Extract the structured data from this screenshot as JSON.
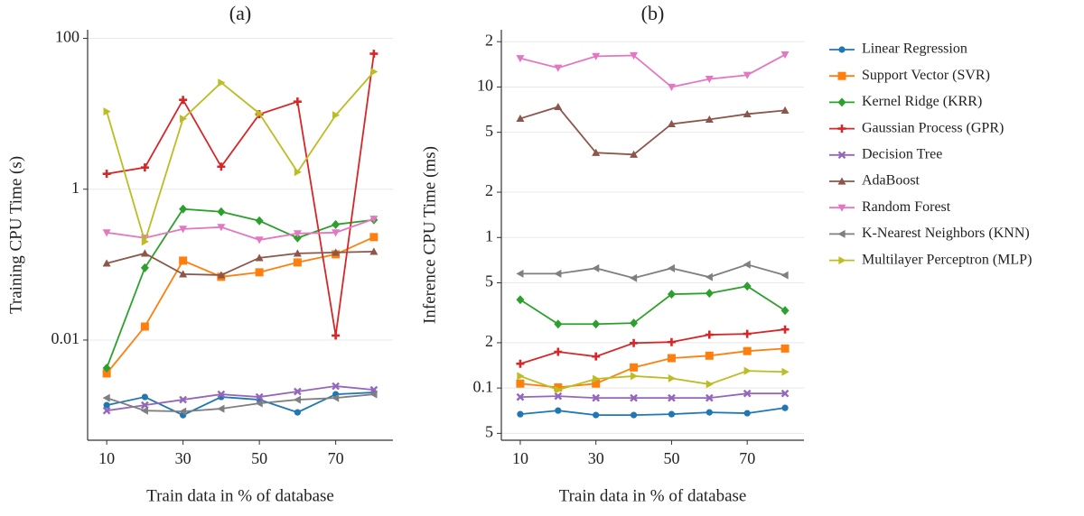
{
  "chart_data": [
    {
      "type": "line",
      "title": "(a)",
      "xlabel": "Train data in % of database",
      "ylabel": "Training CPU Time (s)",
      "log_y": true,
      "grid": true,
      "xlim": [
        5,
        85
      ],
      "ylim": [
        0.00047,
        130
      ],
      "xticks": [
        10,
        30,
        50,
        70
      ],
      "yticks": [
        0.01,
        1,
        100
      ],
      "x": [
        10,
        20,
        30,
        40,
        50,
        60,
        70,
        80
      ],
      "series": [
        {
          "name": "Linear Regression",
          "color": "#1f77b4",
          "marker": "circle",
          "values": [
            0.00137,
            0.00176,
            0.00101,
            0.00176,
            0.00162,
            0.0011,
            0.00191,
            0.00202
          ]
        },
        {
          "name": "Support Vector (SVR)",
          "color": "#ff7f0e",
          "marker": "square",
          "values": [
            0.00361,
            0.0151,
            0.113,
            0.0689,
            0.0791,
            0.107,
            0.137,
            0.232
          ]
        },
        {
          "name": "Kernel Ridge (KRR)",
          "color": "#2ca02c",
          "marker": "diamond",
          "values": [
            0.00426,
            0.0908,
            0.546,
            0.502,
            0.381,
            0.226,
            0.341,
            0.392
          ]
        },
        {
          "name": "Gaussian Process (GPR)",
          "color": "#d62728",
          "marker": "plus",
          "values": [
            1.6,
            1.94,
            15.3,
            1.99,
            9.86,
            14.5,
            0.0115,
            62.5
          ]
        },
        {
          "name": "Decision Tree",
          "color": "#9467bd",
          "marker": "x",
          "values": [
            0.00116,
            0.00137,
            0.00162,
            0.00191,
            0.00176,
            0.00208,
            0.00245,
            0.00219
          ]
        },
        {
          "name": "AdaBoost",
          "color": "#8c564b",
          "marker": "triangle-up",
          "values": [
            0.104,
            0.141,
            0.0748,
            0.0727,
            0.123,
            0.141,
            0.145,
            0.149
          ]
        },
        {
          "name": "Random Forest",
          "color": "#e377c2",
          "marker": "triangle-down",
          "values": [
            0.266,
            0.226,
            0.297,
            0.314,
            0.213,
            0.259,
            0.266,
            0.403
          ]
        },
        {
          "name": "K-Nearest Neighbors (KNN)",
          "color": "#7f7f7f",
          "marker": "triangle-left",
          "values": [
            0.00171,
            0.00116,
            0.00113,
            0.00123,
            0.00145,
            0.00162,
            0.00171,
            0.00191
          ]
        },
        {
          "name": "Multilayer Perceptron (MLP)",
          "color": "#bcbd22",
          "marker": "triangle-right",
          "values": [
            10.7,
            0.202,
            8.59,
            25.9,
            10.1,
            1.69,
            9.59,
            36.1
          ]
        }
      ]
    },
    {
      "type": "line",
      "title": "(b)",
      "xlabel": "Train data in % of database",
      "ylabel": "Inference CPU Time (ms)",
      "log_y": true,
      "grid": true,
      "legend": "outside right",
      "xlim": [
        5,
        85
      ],
      "ylim": [
        0.045,
        24
      ],
      "xticks": [
        10,
        30,
        50,
        70
      ],
      "yticks": [
        {
          "value": 0.05,
          "label": "5"
        },
        0.1,
        {
          "value": 0.2,
          "label": "2"
        },
        {
          "value": 0.5,
          "label": "5"
        },
        1,
        2,
        5,
        10,
        {
          "value": 20,
          "label": "2"
        }
      ],
      "x": [
        10,
        20,
        30,
        40,
        50,
        60,
        70,
        80
      ],
      "series": [
        {
          "name": "Linear Regression",
          "color": "#1f77b4",
          "marker": "circle",
          "values": [
            0.067,
            0.0708,
            0.0661,
            0.0661,
            0.067,
            0.0689,
            0.068,
            0.0738
          ]
        },
        {
          "name": "Support Vector (SVR)",
          "color": "#ff7f0e",
          "marker": "square",
          "values": [
            0.107,
            0.101,
            0.107,
            0.137,
            0.158,
            0.164,
            0.176,
            0.183
          ]
        },
        {
          "name": "Kernel Ridge (KRR)",
          "color": "#2ca02c",
          "marker": "diamond",
          "values": [
            0.386,
            0.266,
            0.266,
            0.27,
            0.42,
            0.426,
            0.475,
            0.327
          ]
        },
        {
          "name": "Gaussian Process (GPR)",
          "color": "#d62728",
          "marker": "plus",
          "values": [
            0.145,
            0.174,
            0.162,
            0.199,
            0.202,
            0.226,
            0.229,
            0.245
          ]
        },
        {
          "name": "Decision Tree",
          "color": "#9467bd",
          "marker": "x",
          "values": [
            0.0871,
            0.0883,
            0.0859,
            0.0859,
            0.0859,
            0.0859,
            0.092,
            0.092
          ]
        },
        {
          "name": "AdaBoost",
          "color": "#8c564b",
          "marker": "triangle-up",
          "values": [
            6.17,
            7.38,
            3.66,
            3.56,
            5.68,
            6.09,
            6.61,
            6.99
          ]
        },
        {
          "name": "Random Forest",
          "color": "#e377c2",
          "marker": "triangle-down",
          "values": [
            15.5,
            13.4,
            16.0,
            16.2,
            10.0,
            11.3,
            12.0,
            16.4
          ]
        },
        {
          "name": "K-Nearest Neighbors (KNN)",
          "color": "#7f7f7f",
          "marker": "triangle-left",
          "values": [
            0.575,
            0.575,
            0.625,
            0.538,
            0.625,
            0.546,
            0.661,
            0.561
          ]
        },
        {
          "name": "Multilayer Perceptron (MLP)",
          "color": "#bcbd22",
          "marker": "triangle-right",
          "values": [
            0.12,
            0.0973,
            0.115,
            0.12,
            0.116,
            0.106,
            0.13,
            0.128
          ]
        }
      ]
    }
  ]
}
